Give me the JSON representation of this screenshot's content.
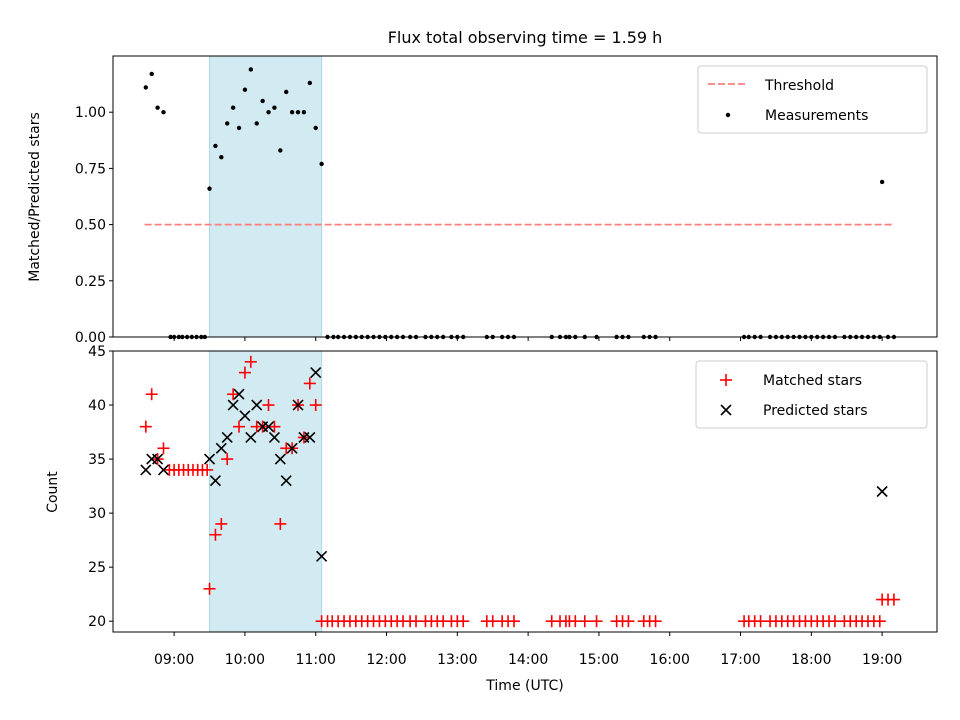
{
  "chart_data": {
    "title": "Flux total observing time = 1.59 h",
    "colors": {
      "threshold": "#ff7f7f",
      "measurement": "#000000",
      "matched": "#ff0000",
      "predicted": "#000000",
      "shade": "#add8e6"
    },
    "shaded_interval": [
      "09:30",
      "11:05"
    ],
    "x_tick_labels": [
      "09:00",
      "10:00",
      "11:00",
      "12:00",
      "13:00",
      "14:00",
      "15:00",
      "16:00",
      "17:00",
      "18:00",
      "19:00"
    ],
    "xlabel": "Time (UTC)",
    "panels": [
      {
        "type": "scatter",
        "ylabel": "Matched/Predicted stars",
        "ylim": [
          0,
          1.25
        ],
        "y_ticks": [
          "0.00",
          "0.25",
          "0.50",
          "0.75",
          "1.00"
        ],
        "legend_position": "top-right",
        "legend": [
          {
            "label": "Threshold",
            "kind": "dashed-line"
          },
          {
            "label": "Measurements",
            "kind": "dot"
          }
        ],
        "threshold": {
          "value": 0.5,
          "x_start": "08:35",
          "x_end": "19:10"
        },
        "series": [
          {
            "name": "Measurements",
            "points": [
              [
                "08:36",
                1.11
              ],
              [
                "08:41",
                1.17
              ],
              [
                "08:46",
                1.02
              ],
              [
                "08:51",
                1.0
              ],
              [
                "08:57",
                0
              ],
              [
                "09:00",
                0
              ],
              [
                "09:04",
                0
              ],
              [
                "09:07",
                0
              ],
              [
                "09:11",
                0
              ],
              [
                "09:15",
                0
              ],
              [
                "09:19",
                0
              ],
              [
                "09:23",
                0
              ],
              [
                "09:26",
                0
              ],
              [
                "09:30",
                0.66
              ],
              [
                "09:35",
                0.85
              ],
              [
                "09:40",
                0.8
              ],
              [
                "09:45",
                0.95
              ],
              [
                "09:50",
                1.02
              ],
              [
                "09:55",
                0.93
              ],
              [
                "10:00",
                1.1
              ],
              [
                "10:05",
                1.19
              ],
              [
                "10:10",
                0.95
              ],
              [
                "10:15",
                1.05
              ],
              [
                "10:20",
                1.0
              ],
              [
                "10:25",
                1.02
              ],
              [
                "10:30",
                0.83
              ],
              [
                "10:35",
                1.09
              ],
              [
                "10:40",
                1.0
              ],
              [
                "10:45",
                1.0
              ],
              [
                "10:50",
                1.0
              ],
              [
                "10:55",
                1.13
              ],
              [
                "11:00",
                0.93
              ],
              [
                "11:05",
                0.77
              ],
              [
                "11:10",
                0
              ],
              [
                "11:15",
                0
              ],
              [
                "11:19",
                0
              ],
              [
                "11:24",
                0
              ],
              [
                "11:29",
                0
              ],
              [
                "11:34",
                0
              ],
              [
                "11:39",
                0
              ],
              [
                "11:44",
                0
              ],
              [
                "11:49",
                0
              ],
              [
                "11:54",
                0
              ],
              [
                "11:59",
                0
              ],
              [
                "12:04",
                0
              ],
              [
                "12:09",
                0
              ],
              [
                "12:14",
                0
              ],
              [
                "12:20",
                0
              ],
              [
                "12:25",
                0
              ],
              [
                "12:33",
                0
              ],
              [
                "12:38",
                0
              ],
              [
                "12:43",
                0
              ],
              [
                "12:48",
                0
              ],
              [
                "12:55",
                0
              ],
              [
                "13:00",
                0
              ],
              [
                "13:05",
                0
              ],
              [
                "13:25",
                0
              ],
              [
                "13:30",
                0
              ],
              [
                "13:38",
                0
              ],
              [
                "13:43",
                0
              ],
              [
                "13:48",
                0
              ],
              [
                "14:20",
                0
              ],
              [
                "14:27",
                0
              ],
              [
                "14:32",
                0
              ],
              [
                "14:35",
                0
              ],
              [
                "14:40",
                0
              ],
              [
                "14:48",
                0
              ],
              [
                "14:58",
                0
              ],
              [
                "15:15",
                0
              ],
              [
                "15:20",
                0
              ],
              [
                "15:25",
                0
              ],
              [
                "15:38",
                0
              ],
              [
                "15:43",
                0
              ],
              [
                "15:48",
                0
              ],
              [
                "17:03",
                0
              ],
              [
                "17:07",
                0
              ],
              [
                "17:12",
                0
              ],
              [
                "17:17",
                0
              ],
              [
                "17:25",
                0
              ],
              [
                "17:30",
                0
              ],
              [
                "17:35",
                0
              ],
              [
                "17:40",
                0
              ],
              [
                "17:45",
                0
              ],
              [
                "17:50",
                0
              ],
              [
                "17:55",
                0
              ],
              [
                "18:00",
                0
              ],
              [
                "18:05",
                0
              ],
              [
                "18:10",
                0
              ],
              [
                "18:15",
                0
              ],
              [
                "18:20",
                0
              ],
              [
                "18:28",
                0
              ],
              [
                "18:33",
                0
              ],
              [
                "18:38",
                0
              ],
              [
                "18:43",
                0
              ],
              [
                "18:48",
                0
              ],
              [
                "18:53",
                0
              ],
              [
                "18:58",
                0
              ],
              [
                "19:00",
                0.69
              ],
              [
                "19:05",
                0
              ],
              [
                "19:10",
                0
              ]
            ]
          }
        ]
      },
      {
        "type": "scatter",
        "ylabel": "Count",
        "ylim": [
          19,
          45
        ],
        "y_ticks": [
          "20",
          "25",
          "30",
          "35",
          "40",
          "45"
        ],
        "legend_position": "top-right",
        "legend": [
          {
            "label": "Matched stars",
            "kind": "plus"
          },
          {
            "label": "Predicted stars",
            "kind": "cross"
          }
        ],
        "series": [
          {
            "name": "Matched stars",
            "points": [
              [
                "08:36",
                38
              ],
              [
                "08:41",
                41
              ],
              [
                "08:46",
                35
              ],
              [
                "08:51",
                36
              ],
              [
                "08:56",
                34
              ],
              [
                "09:00",
                34
              ],
              [
                "09:04",
                34
              ],
              [
                "09:08",
                34
              ],
              [
                "09:12",
                34
              ],
              [
                "09:16",
                34
              ],
              [
                "09:20",
                34
              ],
              [
                "09:24",
                34
              ],
              [
                "09:28",
                34
              ],
              [
                "09:30",
                23
              ],
              [
                "09:35",
                28
              ],
              [
                "09:40",
                29
              ],
              [
                "09:45",
                35
              ],
              [
                "09:50",
                41
              ],
              [
                "09:55",
                38
              ],
              [
                "10:00",
                43
              ],
              [
                "10:05",
                44
              ],
              [
                "10:10",
                38
              ],
              [
                "10:15",
                38
              ],
              [
                "10:20",
                40
              ],
              [
                "10:25",
                38
              ],
              [
                "10:30",
                29
              ],
              [
                "10:35",
                36
              ],
              [
                "10:40",
                36
              ],
              [
                "10:45",
                40
              ],
              [
                "10:50",
                37
              ],
              [
                "10:55",
                42
              ],
              [
                "11:00",
                40
              ],
              [
                "11:05",
                20
              ],
              [
                "11:10",
                20
              ],
              [
                "11:14",
                20
              ],
              [
                "11:19",
                20
              ],
              [
                "11:24",
                20
              ],
              [
                "11:29",
                20
              ],
              [
                "11:34",
                20
              ],
              [
                "11:39",
                20
              ],
              [
                "11:44",
                20
              ],
              [
                "11:49",
                20
              ],
              [
                "11:54",
                20
              ],
              [
                "11:59",
                20
              ],
              [
                "12:04",
                20
              ],
              [
                "12:09",
                20
              ],
              [
                "12:14",
                20
              ],
              [
                "12:20",
                20
              ],
              [
                "12:25",
                20
              ],
              [
                "12:33",
                20
              ],
              [
                "12:38",
                20
              ],
              [
                "12:43",
                20
              ],
              [
                "12:48",
                20
              ],
              [
                "12:55",
                20
              ],
              [
                "13:00",
                20
              ],
              [
                "13:05",
                20
              ],
              [
                "13:25",
                20
              ],
              [
                "13:30",
                20
              ],
              [
                "13:38",
                20
              ],
              [
                "13:43",
                20
              ],
              [
                "13:48",
                20
              ],
              [
                "14:20",
                20
              ],
              [
                "14:27",
                20
              ],
              [
                "14:32",
                20
              ],
              [
                "14:35",
                20
              ],
              [
                "14:40",
                20
              ],
              [
                "14:48",
                20
              ],
              [
                "14:58",
                20
              ],
              [
                "15:15",
                20
              ],
              [
                "15:20",
                20
              ],
              [
                "15:25",
                20
              ],
              [
                "15:38",
                20
              ],
              [
                "15:43",
                20
              ],
              [
                "15:48",
                20
              ],
              [
                "17:03",
                20
              ],
              [
                "17:07",
                20
              ],
              [
                "17:12",
                20
              ],
              [
                "17:17",
                20
              ],
              [
                "17:25",
                20
              ],
              [
                "17:30",
                20
              ],
              [
                "17:35",
                20
              ],
              [
                "17:40",
                20
              ],
              [
                "17:45",
                20
              ],
              [
                "17:50",
                20
              ],
              [
                "17:55",
                20
              ],
              [
                "18:00",
                20
              ],
              [
                "18:05",
                20
              ],
              [
                "18:10",
                20
              ],
              [
                "18:15",
                20
              ],
              [
                "18:20",
                20
              ],
              [
                "18:28",
                20
              ],
              [
                "18:33",
                20
              ],
              [
                "18:38",
                20
              ],
              [
                "18:43",
                20
              ],
              [
                "18:48",
                20
              ],
              [
                "18:53",
                20
              ],
              [
                "18:58",
                20
              ],
              [
                "19:00",
                22
              ],
              [
                "19:05",
                22
              ],
              [
                "19:10",
                22
              ]
            ]
          },
          {
            "name": "Predicted stars",
            "points": [
              [
                "08:36",
                34
              ],
              [
                "08:41",
                35
              ],
              [
                "08:46",
                35
              ],
              [
                "08:51",
                34
              ],
              [
                "09:30",
                35
              ],
              [
                "09:35",
                33
              ],
              [
                "09:40",
                36
              ],
              [
                "09:45",
                37
              ],
              [
                "09:50",
                40
              ],
              [
                "09:55",
                41
              ],
              [
                "10:00",
                39
              ],
              [
                "10:05",
                37
              ],
              [
                "10:10",
                40
              ],
              [
                "10:15",
                38
              ],
              [
                "10:20",
                38
              ],
              [
                "10:25",
                37
              ],
              [
                "10:30",
                35
              ],
              [
                "10:35",
                33
              ],
              [
                "10:40",
                36
              ],
              [
                "10:45",
                40
              ],
              [
                "10:50",
                37
              ],
              [
                "10:55",
                37
              ],
              [
                "11:00",
                43
              ],
              [
                "11:05",
                26
              ],
              [
                "19:00",
                32
              ]
            ]
          }
        ]
      }
    ]
  }
}
